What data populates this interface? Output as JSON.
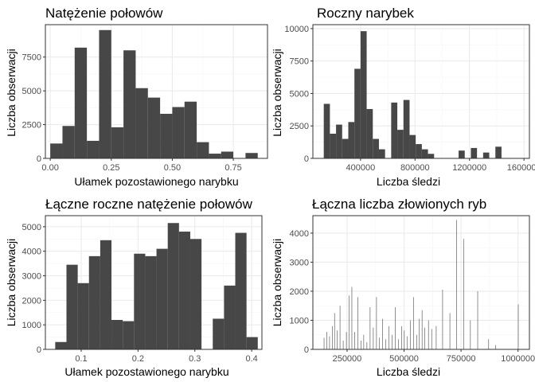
{
  "colors": {
    "bar": "#474747",
    "grid_major": "#ebebeb",
    "grid_minor": "#f5f5f5",
    "border": "#333333",
    "tick": "#333333",
    "panel_bg": "#ffffff"
  },
  "chart_data": [
    {
      "type": "bar",
      "title": "Natężenie połowów",
      "xlabel": "Ułamek pozostawionego narybku",
      "ylabel": "Liczba obserwacji",
      "xlim": [
        -0.02,
        0.89
      ],
      "ylim": [
        0,
        9900
      ],
      "x_ticks": [
        0.0,
        0.25,
        0.5,
        0.75
      ],
      "x_tick_labels": [
        "0.00",
        "0.25",
        "0.50",
        "0.75"
      ],
      "y_ticks": [
        0,
        2500,
        5000,
        7500
      ],
      "y_tick_labels": [
        "0",
        "2500",
        "5000",
        "7500"
      ],
      "grid": true,
      "bin_width": 0.05,
      "bin_start": [
        0.0,
        0.05,
        0.1,
        0.15,
        0.2,
        0.25,
        0.3,
        0.35,
        0.4,
        0.45,
        0.5,
        0.55,
        0.6,
        0.65,
        0.7,
        0.75,
        0.8
      ],
      "values": [
        1100,
        2400,
        8200,
        1300,
        9500,
        2300,
        8000,
        5200,
        4500,
        3300,
        3800,
        4200,
        1200,
        350,
        500,
        0,
        400
      ]
    },
    {
      "type": "bar",
      "title": "Roczny narybek",
      "xlabel": "Liczba śledzi",
      "ylabel": "Liczba obserwacji",
      "xlim": [
        50000,
        1640000
      ],
      "ylim": [
        0,
        10300
      ],
      "x_ticks": [
        400000,
        800000,
        1200000,
        1600000
      ],
      "x_tick_labels": [
        "400000",
        "800000",
        "1200000",
        "1600000"
      ],
      "y_ticks": [
        0,
        2500,
        5000,
        7500,
        10000
      ],
      "y_tick_labels": [
        "0",
        "2500",
        "5000",
        "7500",
        "10000"
      ],
      "grid": true,
      "bin_width": 45000,
      "bin_start": [
        130000,
        175000,
        220000,
        265000,
        310000,
        355000,
        400000,
        445000,
        490000,
        535000,
        580000,
        625000,
        670000,
        715000,
        760000,
        805000,
        850000,
        895000,
        940000,
        985000,
        1030000,
        1075000,
        1120000,
        1165000,
        1210000,
        1255000,
        1300000,
        1345000,
        1390000
      ],
      "values": [
        4200,
        1900,
        2600,
        1500,
        2800,
        6900,
        9800,
        3800,
        1500,
        700,
        0,
        4300,
        2200,
        4500,
        1800,
        1100,
        700,
        350,
        0,
        0,
        0,
        0,
        600,
        0,
        800,
        0,
        450,
        0,
        900
      ]
    },
    {
      "type": "bar",
      "title": "Łączne roczne natężenie połowów",
      "xlabel": "Ułamek pozostawionego narybku",
      "ylabel": "Liczba obserwacji",
      "xlim": [
        0.037,
        0.418
      ],
      "ylim": [
        0,
        5450
      ],
      "x_ticks": [
        0.1,
        0.2,
        0.3,
        0.4
      ],
      "x_tick_labels": [
        "0.1",
        "0.2",
        "0.3",
        "0.4"
      ],
      "y_ticks": [
        0,
        1000,
        2000,
        3000,
        4000,
        5000
      ],
      "y_tick_labels": [
        "0",
        "1000",
        "2000",
        "3000",
        "4000",
        "5000"
      ],
      "grid": true,
      "bin_width": 0.0198,
      "bin_start": [
        0.0543,
        0.0741,
        0.0939,
        0.1137,
        0.1335,
        0.1533,
        0.1731,
        0.1929,
        0.2127,
        0.2325,
        0.2523,
        0.2721,
        0.2919,
        0.3117,
        0.3315,
        0.3513,
        0.3711,
        0.3909
      ],
      "values": [
        300,
        3450,
        2700,
        3800,
        4450,
        1200,
        1150,
        3900,
        3800,
        4100,
        5150,
        4800,
        4500,
        0,
        1250,
        2600,
        4750,
        500
      ]
    },
    {
      "type": "bar",
      "title": "Łączna liczba złowionych ryb",
      "xlabel": "Liczba śledzi",
      "ylabel": "Liczba obserwacji",
      "xlim": [
        100000,
        1050000
      ],
      "ylim": [
        0,
        4600
      ],
      "x_ticks": [
        250000,
        500000,
        750000,
        1000000
      ],
      "x_tick_labels": [
        "250000",
        "500000",
        "750000",
        "1000000"
      ],
      "y_ticks": [
        0,
        1000,
        2000,
        3000,
        4000
      ],
      "y_tick_labels": [
        "0",
        "1000",
        "2000",
        "3000",
        "4000"
      ],
      "grid": true,
      "bin_width": 1600,
      "bin_start": [
        148000,
        160000,
        172000,
        184000,
        194000,
        206000,
        218000,
        232000,
        246000,
        258000,
        270000,
        282000,
        296000,
        310000,
        322000,
        336000,
        350000,
        364000,
        378000,
        390000,
        404000,
        418000,
        432000,
        446000,
        460000,
        474000,
        488000,
        500000,
        512000,
        526000,
        540000,
        554000,
        566000,
        578000,
        590000,
        606000,
        620000,
        640000,
        668000,
        700000,
        730000,
        760000,
        790000,
        822000,
        870000,
        900000,
        1000000
      ],
      "values": [
        400,
        600,
        450,
        800,
        1250,
        650,
        1500,
        300,
        600,
        1850,
        2150,
        600,
        1800,
        300,
        500,
        250,
        1450,
        750,
        1800,
        400,
        1050,
        350,
        800,
        500,
        1450,
        350,
        800,
        650,
        450,
        1000,
        1800,
        500,
        1050,
        1350,
        750,
        1000,
        700,
        800,
        2050,
        1250,
        4450,
        3800,
        1000,
        2000,
        350,
        150,
        1550
      ]
    }
  ]
}
